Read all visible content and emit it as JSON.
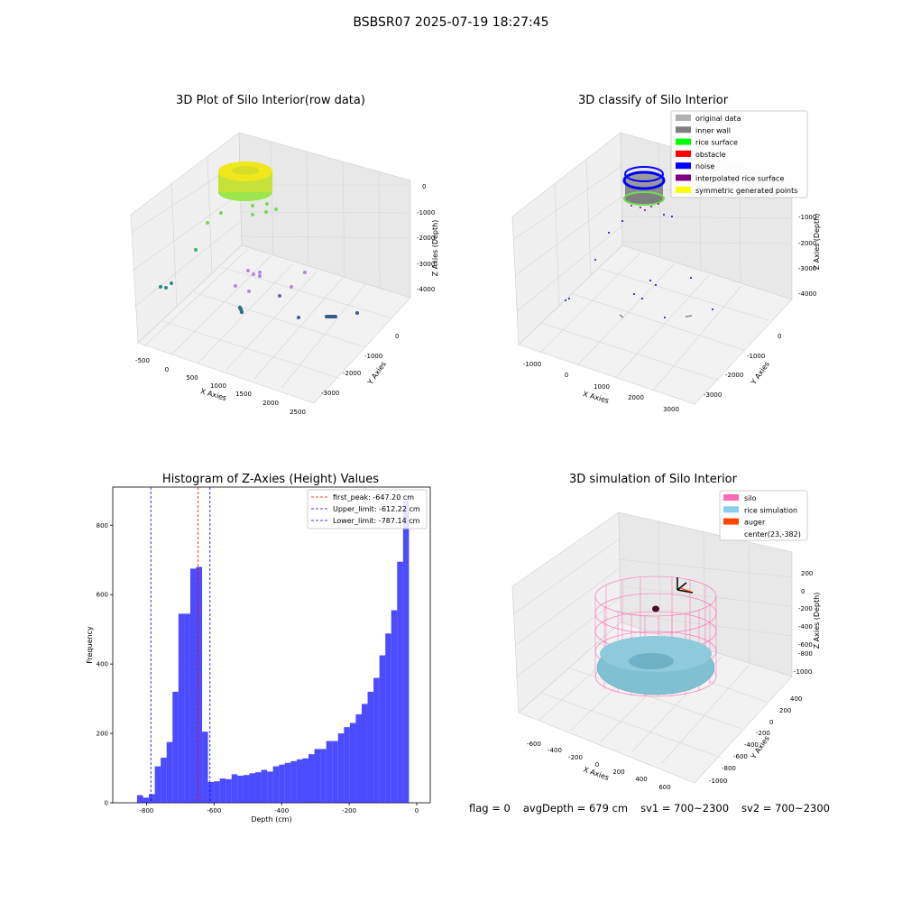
{
  "suptitle": "BSBSR07 2025-07-19 18:27:45",
  "panels": {
    "raw": {
      "title": "3D Plot of Silo Interior(row data)",
      "xlabel": "X Axies",
      "ylabel": "Y Axies",
      "zlabel": "Z Axies (Depth)",
      "xticks": [
        "-500",
        "0",
        "500",
        "1000",
        "1500",
        "2000",
        "2500"
      ],
      "yticks": [
        "0",
        "-1000",
        "-2000",
        "-3000"
      ],
      "zticks": [
        "0",
        "-1000",
        "-2000",
        "-3000",
        "-4000"
      ]
    },
    "classify": {
      "title": "3D classify of Silo Interior",
      "xlabel": "X Axies",
      "ylabel": "Y Axies",
      "zlabel": "Z Axies (Depth)",
      "xticks": [
        "-1000",
        "0",
        "1000",
        "2000",
        "3000"
      ],
      "yticks": [
        "0",
        "-1000",
        "-2000",
        "-3000"
      ],
      "zticks": [
        "0",
        "-1000",
        "-2000",
        "-3000",
        "-4000"
      ],
      "legend": [
        {
          "label": "original data",
          "color": "#b0b0b0"
        },
        {
          "label": "inner wall",
          "color": "#808080"
        },
        {
          "label": "rice surface",
          "color": "#00ff00"
        },
        {
          "label": "obstacle",
          "color": "#ff0000"
        },
        {
          "label": "noise",
          "color": "#0000ff"
        },
        {
          "label": "interpolated rice surface",
          "color": "#800080"
        },
        {
          "label": "symmetric generated points",
          "color": "#ffff00"
        }
      ]
    },
    "simulation": {
      "title": "3D simulation of Silo Interior",
      "xlabel": "X Axies",
      "ylabel": "Y Axies",
      "zlabel": "Z Axies (Depth)",
      "xticks": [
        "-600",
        "-400",
        "-200",
        "0",
        "200",
        "400",
        "600"
      ],
      "yticks": [
        "400",
        "200",
        "0",
        "-200",
        "-400",
        "-600",
        "-800",
        "-1000"
      ],
      "zticks": [
        "200",
        "0",
        "-200",
        "-400",
        "-600",
        "-800",
        "-1000"
      ],
      "legend": [
        {
          "label": "silo",
          "color": "#ff69b4"
        },
        {
          "label": "rice simulation",
          "color": "#87ceeb"
        },
        {
          "label": "auger",
          "color": "#ff4500"
        },
        {
          "label": "center(23,-382)",
          "color": ""
        }
      ]
    }
  },
  "footer": {
    "flag": "flag = 0",
    "avg": "avgDepth = 679 cm",
    "sv1": "sv1 = 700~2300",
    "sv2": "sv2 = 700~2300"
  },
  "chart_data": [
    {
      "type": "bar",
      "title": "Histogram of Z-Axies (Height) Values",
      "xlabel": "Depth (cm)",
      "ylabel": "Frequency",
      "xlim": [
        -900,
        40
      ],
      "ylim": [
        0,
        910
      ],
      "xticks": [
        -800,
        -600,
        -400,
        -200,
        0
      ],
      "yticks": [
        0,
        200,
        400,
        600,
        800
      ],
      "color": "#0000ff",
      "bin_width": 17.5,
      "bin_start": -828,
      "values": [
        22,
        15,
        25,
        105,
        130,
        175,
        320,
        545,
        545,
        675,
        680,
        205,
        60,
        62,
        70,
        68,
        82,
        78,
        80,
        85,
        88,
        95,
        90,
        105,
        110,
        115,
        120,
        125,
        128,
        140,
        155,
        155,
        178,
        178,
        200,
        218,
        230,
        255,
        285,
        320,
        360,
        425,
        488,
        555,
        695,
        870
      ],
      "vlines": [
        {
          "label": "first_peak: -647.20 cm",
          "x": -647.2,
          "color": "#ff0000"
        },
        {
          "label": "Upper_limit: -612.22 cm",
          "x": -612.22,
          "color": "#0000ff"
        },
        {
          "label": "Lower_limit: -787.14 cm",
          "x": -787.14,
          "color": "#0000ff"
        }
      ],
      "legend_position": "top-right"
    }
  ]
}
